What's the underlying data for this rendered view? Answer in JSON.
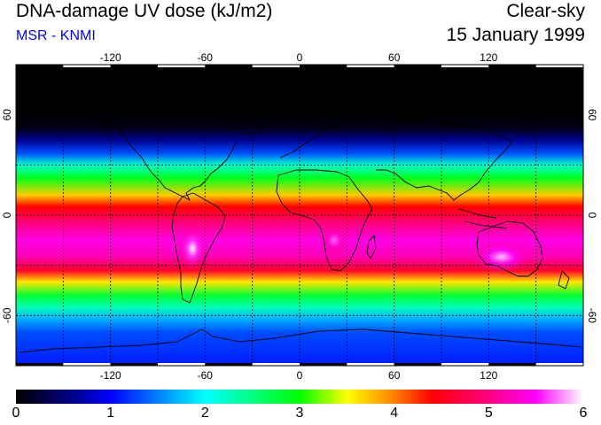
{
  "header": {
    "title": "DNA-damage UV dose (kJ/m2)",
    "source": "MSR - KNMI",
    "condition": "Clear-sky",
    "date": "15 January 1999"
  },
  "map": {
    "projection": "equirectangular",
    "lon_range": [
      -180,
      180
    ],
    "lat_range": [
      -90,
      90
    ],
    "grid_spacing_deg": 30,
    "lon_ticks": [
      -120,
      -60,
      0,
      60,
      120
    ],
    "lat_ticks": [
      60,
      0,
      -60
    ],
    "colors": {
      "background": "#ffffff",
      "map_no_data": "#000000",
      "gridline": "#000000",
      "coastline": "#000000"
    },
    "dose_by_latitude": [
      {
        "lat": 90,
        "dose": 0.0
      },
      {
        "lat": 60,
        "dose": 0.0
      },
      {
        "lat": 52,
        "dose": 0.1
      },
      {
        "lat": 45,
        "dose": 0.6
      },
      {
        "lat": 37,
        "dose": 1.3
      },
      {
        "lat": 30,
        "dose": 2.2
      },
      {
        "lat": 22,
        "dose": 2.9
      },
      {
        "lat": 12,
        "dose": 3.7
      },
      {
        "lat": 5,
        "dose": 4.4
      },
      {
        "lat": -5,
        "dose": 5.0
      },
      {
        "lat": -15,
        "dose": 5.4
      },
      {
        "lat": -25,
        "dose": 5.2
      },
      {
        "lat": -33,
        "dose": 4.6
      },
      {
        "lat": -40,
        "dose": 3.6
      },
      {
        "lat": -48,
        "dose": 2.8
      },
      {
        "lat": -55,
        "dose": 2.3
      },
      {
        "lat": -62,
        "dose": 1.7
      },
      {
        "lat": -70,
        "dose": 1.3
      },
      {
        "lat": -80,
        "dose": 1.2
      },
      {
        "lat": -90,
        "dose": 1.1
      }
    ],
    "maxima": [
      {
        "region": "Altiplano (South America)",
        "lon": -68,
        "lat": -20,
        "dose": 6.0
      },
      {
        "region": "Australia",
        "lon": 128,
        "lat": -25,
        "dose": 5.9
      },
      {
        "region": "Southern Africa",
        "lon": 22,
        "lat": -15,
        "dose": 5.7
      }
    ]
  },
  "colorbar": {
    "min": 0,
    "max": 6,
    "labels": [
      "0",
      "1",
      "2",
      "3",
      "4",
      "5",
      "6"
    ],
    "stops": [
      {
        "value": 0.0,
        "color": "#000000"
      },
      {
        "value": 0.5,
        "color": "#000070"
      },
      {
        "value": 1.0,
        "color": "#0000ff"
      },
      {
        "value": 1.5,
        "color": "#0080ff"
      },
      {
        "value": 2.0,
        "color": "#00ffff"
      },
      {
        "value": 2.5,
        "color": "#00ff80"
      },
      {
        "value": 3.0,
        "color": "#00ff00"
      },
      {
        "value": 3.5,
        "color": "#ffff00"
      },
      {
        "value": 4.0,
        "color": "#ff8000"
      },
      {
        "value": 4.4,
        "color": "#ff0000"
      },
      {
        "value": 5.0,
        "color": "#ff0080"
      },
      {
        "value": 5.5,
        "color": "#ff00ff"
      },
      {
        "value": 6.0,
        "color": "#ffffff"
      }
    ]
  }
}
